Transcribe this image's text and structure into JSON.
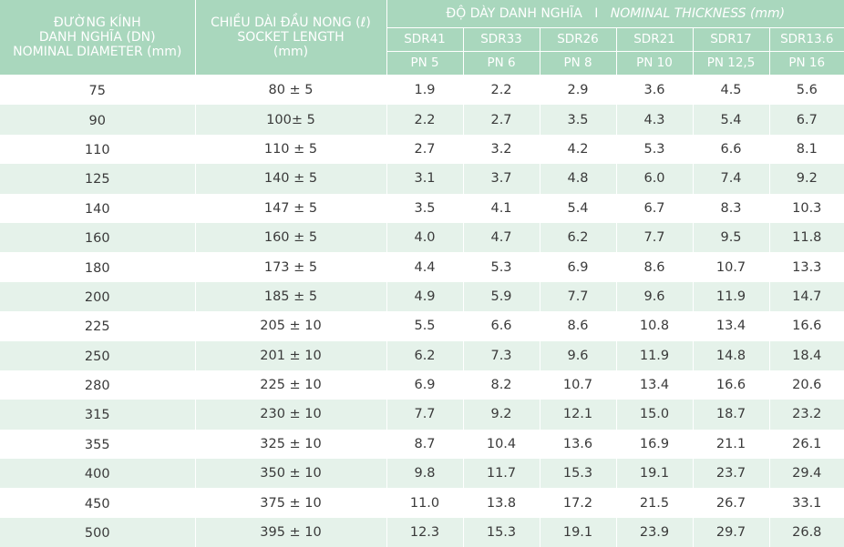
{
  "header": {
    "dn_label_line1": "ĐƯỜNG KÍNH",
    "dn_label_line2": "DANH NGHĨA (DN)",
    "dn_label_line3": "NOMINAL DIAMETER (mm)",
    "socket_label_line1": "CHIỀU DÀI ĐẦU NONG (ℓ)",
    "socket_label_line2": "SOCKET LENGTH",
    "socket_label_line3": "(mm)",
    "thickness_vi": "ĐỘ DÀY DANH NGHĨA",
    "thickness_sep": "I",
    "thickness_en": "NOMINAL THICKNESS (mm)",
    "sdr": [
      "SDR41",
      "SDR33",
      "SDR26",
      "SDR21",
      "SDR17",
      "SDR13.6"
    ],
    "pn": [
      "PN 5",
      "PN 6",
      "PN 8",
      "PN 10",
      "PN 12,5",
      "PN 16"
    ]
  },
  "rows": [
    {
      "dn": "75",
      "socket": "80 ± 5",
      "t": [
        "1.9",
        "2.2",
        "2.9",
        "3.6",
        "4.5",
        "5.6"
      ]
    },
    {
      "dn": "90",
      "socket": "100± 5",
      "t": [
        "2.2",
        "2.7",
        "3.5",
        "4.3",
        "5.4",
        "6.7"
      ]
    },
    {
      "dn": "110",
      "socket": "110 ± 5",
      "t": [
        "2.7",
        "3.2",
        "4.2",
        "5.3",
        "6.6",
        "8.1"
      ]
    },
    {
      "dn": "125",
      "socket": "140 ± 5",
      "t": [
        "3.1",
        "3.7",
        "4.8",
        "6.0",
        "7.4",
        "9.2"
      ]
    },
    {
      "dn": "140",
      "socket": "147 ± 5",
      "t": [
        "3.5",
        "4.1",
        "5.4",
        "6.7",
        "8.3",
        "10.3"
      ]
    },
    {
      "dn": "160",
      "socket": "160 ± 5",
      "t": [
        "4.0",
        "4.7",
        "6.2",
        "7.7",
        "9.5",
        "11.8"
      ]
    },
    {
      "dn": "180",
      "socket": "173 ± 5",
      "t": [
        "4.4",
        "5.3",
        "6.9",
        "8.6",
        "10.7",
        "13.3"
      ]
    },
    {
      "dn": "200",
      "socket": "185 ± 5",
      "t": [
        "4.9",
        "5.9",
        "7.7",
        "9.6",
        "11.9",
        "14.7"
      ]
    },
    {
      "dn": "225",
      "socket": "205 ± 10",
      "t": [
        "5.5",
        "6.6",
        "8.6",
        "10.8",
        "13.4",
        "16.6"
      ]
    },
    {
      "dn": "250",
      "socket": "201 ± 10",
      "t": [
        "6.2",
        "7.3",
        "9.6",
        "11.9",
        "14.8",
        "18.4"
      ]
    },
    {
      "dn": "280",
      "socket": "225 ± 10",
      "t": [
        "6.9",
        "8.2",
        "10.7",
        "13.4",
        "16.6",
        "20.6"
      ]
    },
    {
      "dn": "315",
      "socket": "230 ± 10",
      "t": [
        "7.7",
        "9.2",
        "12.1",
        "15.0",
        "18.7",
        "23.2"
      ]
    },
    {
      "dn": "355",
      "socket": "325 ± 10",
      "t": [
        "8.7",
        "10.4",
        "13.6",
        "16.9",
        "21.1",
        "26.1"
      ]
    },
    {
      "dn": "400",
      "socket": "350 ± 10",
      "t": [
        "9.8",
        "11.7",
        "15.3",
        "19.1",
        "23.7",
        "29.4"
      ]
    },
    {
      "dn": "450",
      "socket": "375 ± 10",
      "t": [
        "11.0",
        "13.8",
        "17.2",
        "21.5",
        "26.7",
        "33.1"
      ]
    },
    {
      "dn": "500",
      "socket": "395 ± 10",
      "t": [
        "12.3",
        "15.3",
        "19.1",
        "23.9",
        "29.7",
        "26.8"
      ]
    }
  ]
}
